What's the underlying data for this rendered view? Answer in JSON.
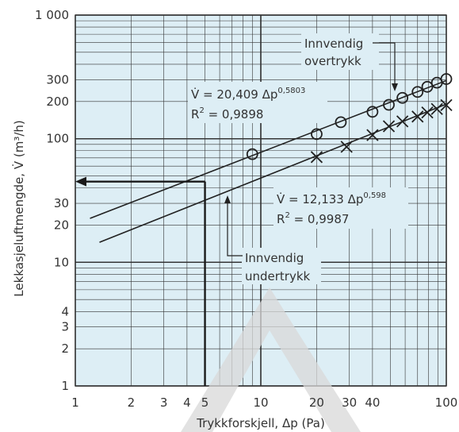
{
  "chart_data": {
    "type": "scatter",
    "x_scale": "log",
    "y_scale": "log",
    "xlim": [
      1,
      100
    ],
    "ylim": [
      1,
      1000
    ],
    "grid": true,
    "xlabel": "Trykkforskjell, Δp (Pa)",
    "ylabel": "Lekkasjeluftmengde, V̇ (m³/h)",
    "x_ticks": [
      {
        "value": 1,
        "label": "1"
      },
      {
        "value": 2,
        "label": "2"
      },
      {
        "value": 3,
        "label": "3"
      },
      {
        "value": 4,
        "label": "4"
      },
      {
        "value": 5,
        "label": "5"
      },
      {
        "value": 10,
        "label": "10"
      },
      {
        "value": 20,
        "label": "20"
      },
      {
        "value": 30,
        "label": "30"
      },
      {
        "value": 40,
        "label": "40"
      },
      {
        "value": 100,
        "label": "100"
      }
    ],
    "y_ticks": [
      {
        "value": 1,
        "label": "1"
      },
      {
        "value": 2,
        "label": "2"
      },
      {
        "value": 3,
        "label": "3"
      },
      {
        "value": 4,
        "label": "4"
      },
      {
        "value": 10,
        "label": "10"
      },
      {
        "value": 20,
        "label": "20"
      },
      {
        "value": 30,
        "label": "30"
      },
      {
        "value": 100,
        "label": "100"
      },
      {
        "value": 200,
        "label": "200"
      },
      {
        "value": 300,
        "label": "300"
      },
      {
        "value": 1000,
        "label": "1 000"
      }
    ],
    "series": [
      {
        "name": "Innvendig overtrykk",
        "marker": "circle",
        "fit_coef": 20.409,
        "fit_exp": 0.5803,
        "fit_xrange": [
          1.2,
          100
        ],
        "points": [
          {
            "x": 9,
            "y": 75
          },
          {
            "x": 20,
            "y": 109
          },
          {
            "x": 27,
            "y": 136
          },
          {
            "x": 40,
            "y": 165
          },
          {
            "x": 49,
            "y": 188
          },
          {
            "x": 58,
            "y": 214
          },
          {
            "x": 70,
            "y": 239
          },
          {
            "x": 79,
            "y": 263
          },
          {
            "x": 89,
            "y": 284
          },
          {
            "x": 100,
            "y": 304
          }
        ]
      },
      {
        "name": "Innvendig undertrykk",
        "marker": "cross",
        "fit_coef": 12.133,
        "fit_exp": 0.598,
        "fit_xrange": [
          1.35,
          100
        ],
        "points": [
          {
            "x": 20,
            "y": 71
          },
          {
            "x": 29,
            "y": 86
          },
          {
            "x": 40,
            "y": 107
          },
          {
            "x": 49,
            "y": 126
          },
          {
            "x": 58,
            "y": 138
          },
          {
            "x": 70,
            "y": 151
          },
          {
            "x": 79,
            "y": 163
          },
          {
            "x": 89,
            "y": 174
          },
          {
            "x": 100,
            "y": 187
          }
        ]
      }
    ],
    "annotations": {
      "top_equation": {
        "lhs": "V̇ = 20,409 Δp",
        "exp": "0,5803",
        "r2_lhs": "R",
        "r2_rhs": " = 0,9898"
      },
      "bottom_equation": {
        "lhs": "V̇ = 12,133 Δp",
        "exp": "0,598",
        "r2_lhs": "R",
        "r2_rhs": " = 0,9987"
      },
      "top_label": [
        "Innvendig",
        "overtrykk"
      ],
      "bottom_label": [
        "Innvendig",
        "undertrykk"
      ],
      "reading": {
        "x": 5,
        "y": 45
      }
    },
    "colors": {
      "plot_bg": "#ddeef5",
      "grid": "#333333",
      "line": "#222222",
      "watermark": "#d8d8d8"
    }
  }
}
